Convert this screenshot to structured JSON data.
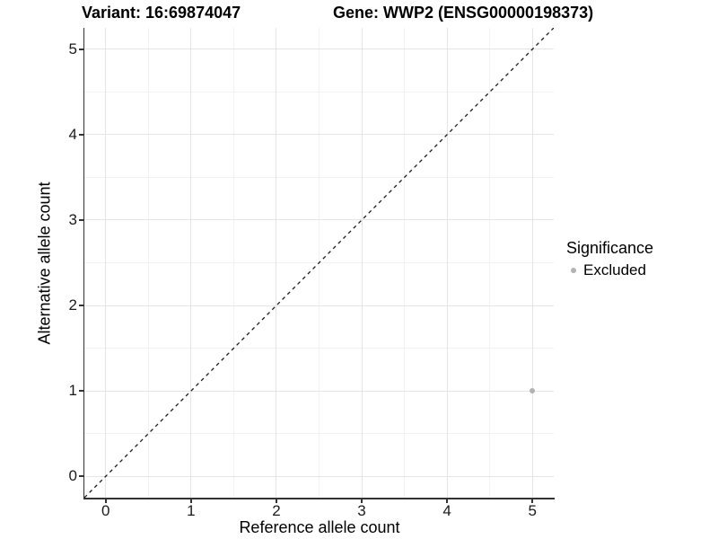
{
  "titles": {
    "variant": "Variant: 16:69874047",
    "gene": "Gene: WWP2 (ENSG00000198373)"
  },
  "chart_data": {
    "type": "scatter",
    "xlabel": "Reference allele count",
    "ylabel": "Alternative allele count",
    "xlim": [
      -0.25,
      5.25
    ],
    "ylim": [
      -0.25,
      5.25
    ],
    "x_ticks": [
      0,
      1,
      2,
      3,
      4,
      5
    ],
    "y_ticks": [
      0,
      1,
      2,
      3,
      4,
      5
    ],
    "x_minor_ticks": [
      0.5,
      1.5,
      2.5,
      3.5,
      4.5
    ],
    "y_minor_ticks": [
      0.5,
      1.5,
      2.5,
      3.5,
      4.5
    ],
    "grid": true,
    "points": [
      {
        "x": 5,
        "y": 1,
        "series": "Excluded"
      }
    ],
    "identity_line": {
      "style": "dashed",
      "from": [
        -0.25,
        -0.25
      ],
      "to": [
        5.25,
        5.25
      ],
      "color": "#1a1a1a"
    },
    "legend": {
      "title": "Significance",
      "position": "right",
      "items": [
        {
          "label": "Excluded",
          "color": "#b3b3b3"
        }
      ]
    },
    "colors": {
      "point": "#b3b3b3",
      "grid_major": "#e5e5e5",
      "grid_minor": "#f2f2f2",
      "axis": "#333333",
      "background": "#ffffff"
    }
  }
}
